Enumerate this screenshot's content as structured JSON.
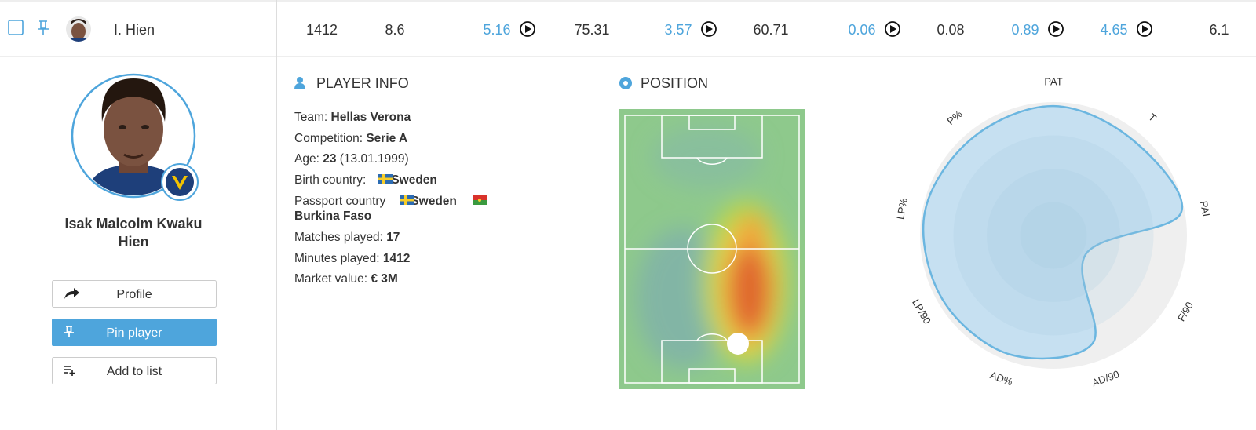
{
  "row": {
    "name": "I. Hien",
    "stats": [
      {
        "value": 1412,
        "video": false
      },
      {
        "value": 8.6,
        "video": false
      },
      {
        "value": 5.16,
        "video": true
      },
      {
        "value": 75.31,
        "video": false
      },
      {
        "value": 3.57,
        "video": true
      },
      {
        "value": 60.71,
        "video": false
      },
      {
        "value": 0.06,
        "video": true
      },
      {
        "value": 0.08,
        "video": false
      },
      {
        "value": 0.89,
        "video": true
      },
      {
        "value": 4.65,
        "video": true
      },
      {
        "value": 6.1,
        "video": false
      }
    ]
  },
  "profile": {
    "full_name": "Isak Malcolm Kwaku Hien",
    "buttons": [
      "Profile",
      "Pin player",
      "Add to list"
    ]
  },
  "player_info": {
    "title": "PLAYER INFO",
    "team": {
      "label": "Team:",
      "value": "Hellas Verona"
    },
    "competition": {
      "label": "Competition:",
      "value": "Serie A"
    },
    "age": {
      "label": "Age:",
      "value": 23,
      "birth_date": "(13.01.1999)"
    },
    "birth_country": {
      "label": "Birth country:",
      "value": "Sweden"
    },
    "passport_country": {
      "label": "Passport country",
      "values": [
        "Sweden",
        "Burkina Faso"
      ]
    },
    "matches": {
      "label": "Matches played:",
      "value": 17
    },
    "minutes": {
      "label": "Minutes played:",
      "value": 1412
    },
    "market_value": {
      "label": "Market value:",
      "value": "€ 3M"
    }
  },
  "position": {
    "title": "POSITION"
  },
  "radar": {
    "rlim": [
      0,
      100
    ],
    "color": "#6bb6e0",
    "axes": [
      {
        "label": "PAT",
        "value": 97
      },
      {
        "label": "T",
        "value": 93
      },
      {
        "label": "PAI",
        "value": 97
      },
      {
        "label": "F/90",
        "value": 28
      },
      {
        "label": "AD/90",
        "value": 86
      },
      {
        "label": "AD%",
        "value": 95
      },
      {
        "label": "LP/90",
        "value": 96
      },
      {
        "label": "LP%",
        "value": 98
      },
      {
        "label": "P%",
        "value": 95
      }
    ]
  }
}
